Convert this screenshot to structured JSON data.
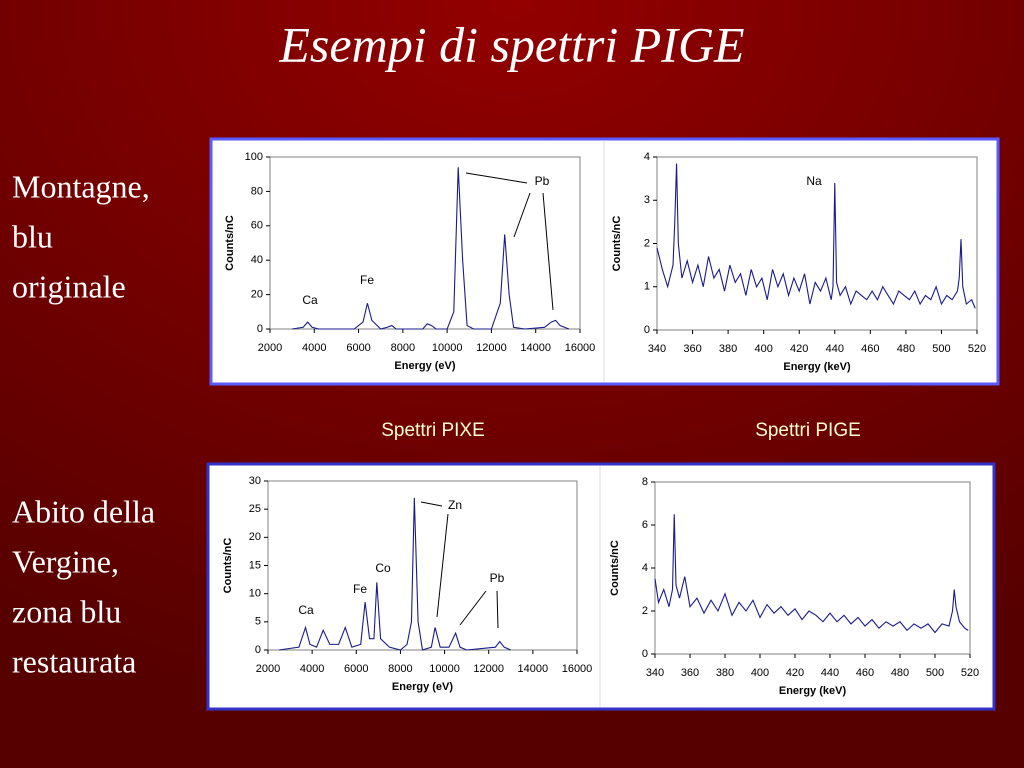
{
  "slide": {
    "title": "Esempi di spettri PIGE",
    "left_labels": [
      [
        "Montagne,",
        "blu",
        "originale"
      ],
      [
        "Abito della",
        "Vergine,",
        "zona blu",
        "restaurata"
      ]
    ],
    "captions": [
      "Spettri PIXE",
      "Spettri PIGE"
    ]
  },
  "chart_data": [
    {
      "type": "line",
      "xlabel": "Energy (eV)",
      "ylabel": "Counts/nC",
      "xlim": [
        2000,
        16000
      ],
      "xticks": [
        2000,
        4000,
        6000,
        8000,
        10000,
        12000,
        14000,
        16000
      ],
      "ylim": [
        0,
        100
      ],
      "yticks": [
        0,
        20,
        40,
        60,
        80,
        100
      ],
      "color": "#1a1a8c",
      "annotations": [
        "Ca",
        "Fe",
        "Pb"
      ],
      "x": [
        3000,
        3500,
        3700,
        3900,
        4200,
        5800,
        6200,
        6400,
        6600,
        7000,
        7300,
        7500,
        7700,
        8900,
        9100,
        9300,
        9500,
        10000,
        10300,
        10500,
        10700,
        10900,
        11200,
        12000,
        12400,
        12600,
        12800,
        13000,
        13500,
        14400,
        14700,
        14900,
        15100,
        15500
      ],
      "values": [
        0,
        1,
        4,
        1,
        0,
        0,
        4,
        15,
        5,
        0,
        1,
        2,
        0,
        0,
        3,
        2,
        0,
        0,
        10,
        94,
        40,
        2,
        0,
        0,
        15,
        55,
        20,
        1,
        0,
        1,
        4,
        5,
        2,
        0
      ]
    },
    {
      "type": "line",
      "xlabel": "Energy (keV)",
      "ylabel": "Counts/nC",
      "xlim": [
        340,
        520
      ],
      "xticks": [
        340,
        360,
        380,
        400,
        420,
        440,
        460,
        480,
        500,
        520
      ],
      "ylim": [
        0,
        4
      ],
      "yticks": [
        0,
        1,
        2,
        3,
        4
      ],
      "color": "#1a1a8c",
      "annotations": [
        "Na"
      ],
      "x": [
        340,
        343,
        346,
        349,
        350,
        351,
        352,
        354,
        357,
        360,
        363,
        366,
        369,
        372,
        375,
        378,
        381,
        384,
        387,
        390,
        393,
        396,
        399,
        402,
        405,
        408,
        411,
        414,
        417,
        420,
        423,
        426,
        429,
        432,
        435,
        438,
        439,
        440,
        441,
        443,
        446,
        449,
        452,
        455,
        458,
        461,
        464,
        467,
        470,
        473,
        476,
        479,
        482,
        485,
        488,
        491,
        494,
        497,
        500,
        503,
        506,
        509,
        510,
        511,
        512,
        514,
        517,
        519
      ],
      "values": [
        1.9,
        1.4,
        1.0,
        1.5,
        2.5,
        3.85,
        2.0,
        1.2,
        1.6,
        1.1,
        1.5,
        1.0,
        1.7,
        1.2,
        1.4,
        0.9,
        1.5,
        1.1,
        1.3,
        0.8,
        1.4,
        1.0,
        1.2,
        0.7,
        1.4,
        1.0,
        1.3,
        0.8,
        1.2,
        0.9,
        1.3,
        0.6,
        1.1,
        0.9,
        1.2,
        0.7,
        1.0,
        3.4,
        1.1,
        0.8,
        1.0,
        0.6,
        0.9,
        0.8,
        0.7,
        0.9,
        0.7,
        1.0,
        0.8,
        0.6,
        0.9,
        0.8,
        0.7,
        0.9,
        0.6,
        0.8,
        0.7,
        1.0,
        0.6,
        0.8,
        0.7,
        0.9,
        1.2,
        2.1,
        1.0,
        0.6,
        0.7,
        0.5
      ]
    },
    {
      "type": "line",
      "xlabel": "Energy (eV)",
      "ylabel": "Counts/nC",
      "xlim": [
        2000,
        16000
      ],
      "xticks": [
        2000,
        4000,
        6000,
        8000,
        10000,
        12000,
        14000,
        16000
      ],
      "ylim": [
        0,
        30
      ],
      "yticks": [
        0,
        5,
        10,
        15,
        20,
        25,
        30
      ],
      "color": "#1a1a8c",
      "annotations": [
        "Zn",
        "Co",
        "Fe",
        "Ca",
        "Pb"
      ],
      "x": [
        2500,
        3400,
        3700,
        3900,
        4200,
        4500,
        4800,
        5200,
        5500,
        5800,
        6200,
        6400,
        6600,
        6800,
        6930,
        7100,
        7500,
        8000,
        8300,
        8500,
        8630,
        8800,
        9000,
        9400,
        9570,
        9800,
        10200,
        10500,
        10700,
        11000,
        12300,
        12500,
        12700,
        13000
      ],
      "values": [
        0,
        0.5,
        4,
        1,
        0.5,
        3.5,
        1,
        1,
        4,
        0.5,
        1,
        8.5,
        2,
        2,
        12,
        2,
        0.5,
        0,
        1,
        5,
        27,
        5,
        0,
        0.5,
        4,
        0.5,
        0.5,
        3,
        0.5,
        0,
        0.5,
        1.5,
        0.5,
        0
      ]
    },
    {
      "type": "line",
      "xlabel": "Energy (keV)",
      "ylabel": "Counts/nC",
      "xlim": [
        340,
        520
      ],
      "xticks": [
        340,
        360,
        380,
        400,
        420,
        440,
        460,
        480,
        500,
        520
      ],
      "ylim": [
        0,
        8
      ],
      "yticks": [
        0,
        2,
        4,
        6,
        8
      ],
      "color": "#1a1a8c",
      "x": [
        340,
        342,
        345,
        348,
        350,
        351,
        352,
        354,
        357,
        360,
        364,
        368,
        372,
        376,
        380,
        384,
        388,
        392,
        396,
        400,
        404,
        408,
        412,
        416,
        420,
        424,
        428,
        432,
        436,
        440,
        444,
        448,
        452,
        456,
        460,
        464,
        468,
        472,
        476,
        480,
        484,
        488,
        492,
        496,
        500,
        504,
        508,
        510,
        511,
        512,
        514,
        517,
        519
      ],
      "values": [
        3.5,
        2.4,
        3.0,
        2.2,
        3.0,
        6.5,
        3.2,
        2.6,
        3.6,
        2.2,
        2.6,
        1.9,
        2.5,
        2.0,
        2.8,
        1.8,
        2.4,
        2.0,
        2.5,
        1.7,
        2.3,
        1.9,
        2.2,
        1.8,
        2.1,
        1.6,
        2.0,
        1.8,
        1.5,
        1.9,
        1.5,
        1.8,
        1.4,
        1.7,
        1.3,
        1.6,
        1.2,
        1.5,
        1.3,
        1.5,
        1.1,
        1.4,
        1.2,
        1.4,
        1.0,
        1.4,
        1.3,
        2.0,
        3.0,
        2.2,
        1.5,
        1.2,
        1.1
      ]
    }
  ]
}
